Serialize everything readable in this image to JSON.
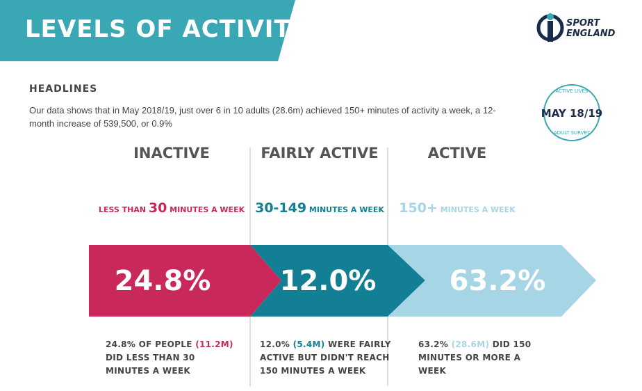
{
  "header": {
    "title": "LEVELS OF ACTIVITY"
  },
  "logo": {
    "line1": "SPORT",
    "line2": "ENGLAND"
  },
  "headlines": {
    "title": "HEADLINES",
    "text": "Our data shows that in May 2018/19, just over 6 in 10 adults (28.6m) achieved 150+ minutes of activity a week, a 12-month increase of 539,500, or 0.9%"
  },
  "badge": {
    "top": "ACTIVE LIVES",
    "middle": "MAY 18/19",
    "bottom": "ADULT SURVEY"
  },
  "columns": [
    {
      "heading": "INACTIVE",
      "color": "#c8285a",
      "threshold": [
        {
          "text": "LESS THAN ",
          "size": "small"
        },
        {
          "text": "30",
          "size": "big"
        },
        {
          "text": " MINUTES A WEEK",
          "size": "small"
        }
      ],
      "value": "24.8%",
      "description": [
        {
          "text": "24.8% OF PEOPLE ",
          "highlight": false
        },
        {
          "text": "(11.2M)",
          "highlight": true
        },
        {
          "text": " DID LESS THAN 30 MINUTES A WEEK",
          "highlight": false
        }
      ]
    },
    {
      "heading": "FAIRLY ACTIVE",
      "color": "#127f94",
      "threshold": [
        {
          "text": "30-149",
          "size": "big"
        },
        {
          "text": " MINUTES A WEEK",
          "size": "small"
        }
      ],
      "value": "12.0%",
      "description": [
        {
          "text": "12.0% ",
          "highlight": false
        },
        {
          "text": "(5.4M)",
          "highlight": true
        },
        {
          "text": " WERE FAIRLY ACTIVE BUT DIDN'T REACH 150 MINUTES A WEEK",
          "highlight": false
        }
      ]
    },
    {
      "heading": "ACTIVE",
      "color": "#a6d5e6",
      "threshold": [
        {
          "text": "150+",
          "size": "big"
        },
        {
          "text": " MINUTES A WEEK",
          "size": "small"
        }
      ],
      "value": "63.2%",
      "description": [
        {
          "text": "63.2% ",
          "highlight": false
        },
        {
          "text": "(28.6M)",
          "highlight": true
        },
        {
          "text": " DID 150 MINUTES OR MORE A WEEK",
          "highlight": false
        }
      ]
    }
  ]
}
